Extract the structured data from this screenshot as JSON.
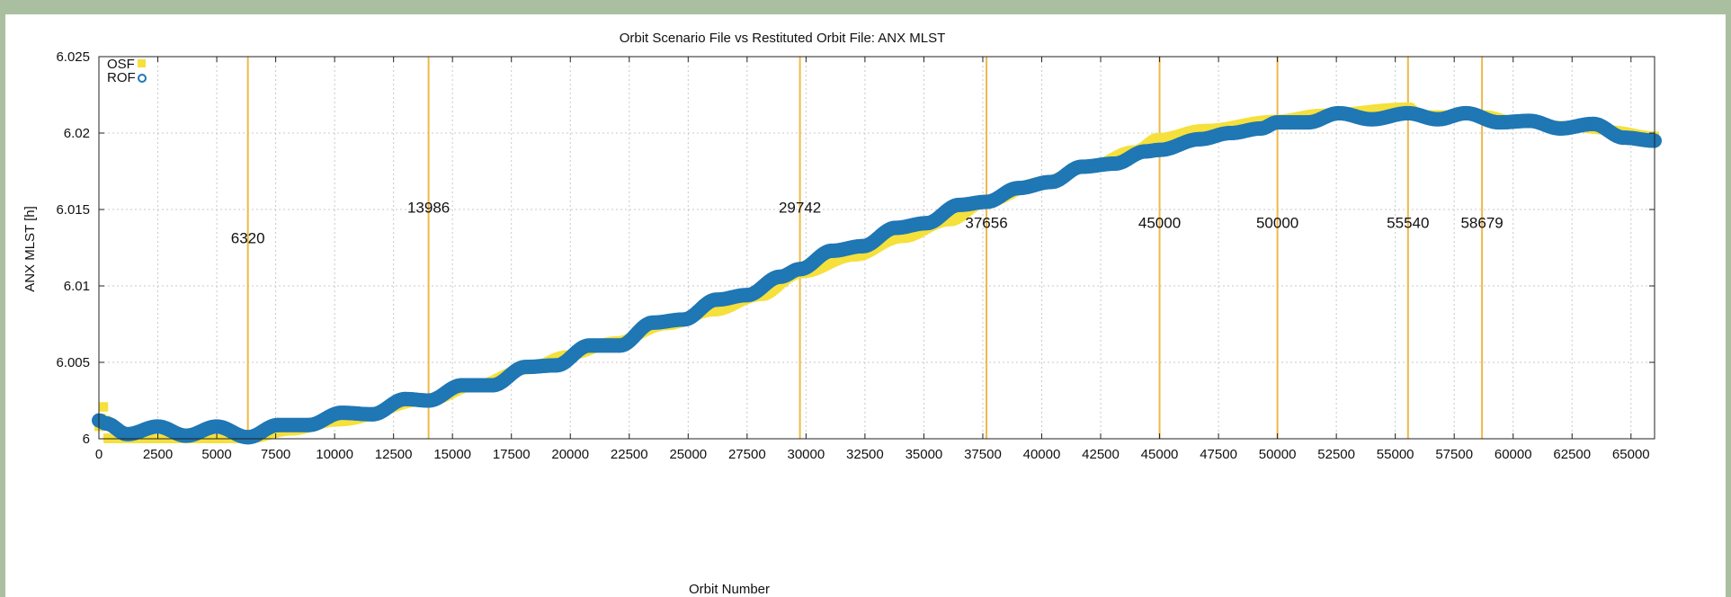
{
  "chart_data": {
    "type": "scatter",
    "title": "Orbit Scenario File vs Restituted Orbit File: ANX MLST",
    "xlabel": "Orbit Number",
    "ylabel": "ANX MLST [h]",
    "xlim": [
      0,
      66000
    ],
    "ylim": [
      6.0,
      6.025
    ],
    "xticks": [
      0,
      2500,
      5000,
      7500,
      10000,
      12500,
      15000,
      17500,
      20000,
      22500,
      25000,
      27500,
      30000,
      32500,
      35000,
      37500,
      40000,
      42500,
      45000,
      47500,
      50000,
      52500,
      55000,
      57500,
      60000,
      62500,
      65000
    ],
    "yticks": [
      6.0,
      6.005,
      6.01,
      6.015,
      6.02,
      6.025
    ],
    "ytick_labels": [
      "6",
      "6.005",
      "6.01",
      "6.015",
      "6.02",
      "6.025"
    ],
    "grid": true,
    "legend": "top-left",
    "series": [
      {
        "name": "OSF",
        "marker": "filled-square",
        "color": "#f5e03c",
        "x": [
          0,
          200,
          400,
          2000,
          4000,
          6320,
          8000,
          10000,
          13986,
          16000,
          18000,
          20000,
          22000,
          24000,
          26000,
          28000,
          29742,
          32000,
          34000,
          36000,
          37656,
          40000,
          42000,
          44000,
          45000,
          47000,
          50000,
          52000,
          55540,
          56000,
          58679,
          60000,
          62000,
          64000,
          66000
        ],
        "y": [
          6.0008,
          6.0021,
          6.0,
          6.0,
          6.0,
          6.0,
          6.0005,
          6.0011,
          6.0025,
          6.0035,
          6.0045,
          6.0055,
          6.0064,
          6.0074,
          6.0083,
          6.0093,
          6.0108,
          6.0119,
          6.0131,
          6.0142,
          6.0155,
          6.0168,
          6.0178,
          6.0189,
          6.0197,
          6.0203,
          6.0209,
          6.0213,
          6.0217,
          6.0212,
          6.0212,
          6.0208,
          6.0205,
          6.0202,
          6.0198
        ]
      },
      {
        "name": "ROF",
        "marker": "open-circle",
        "color": "#1f77b4",
        "x": [
          0,
          300,
          1200,
          2500,
          3700,
          5000,
          6320,
          7600,
          8900,
          10300,
          11600,
          13000,
          13986,
          15400,
          16700,
          18100,
          19400,
          20800,
          22100,
          23500,
          24800,
          26200,
          27500,
          28900,
          29742,
          31100,
          32400,
          33800,
          35100,
          36500,
          37656,
          39000,
          40400,
          41700,
          43100,
          44400,
          45000,
          46700,
          48000,
          49300,
          50000,
          51300,
          52600,
          54000,
          55540,
          56800,
          58000,
          59400,
          60700,
          62000,
          63400,
          64700,
          66000
        ],
        "y": [
          6.0012,
          6.001,
          6.0003,
          6.0008,
          6.0002,
          6.0008,
          6.0001,
          6.0009,
          6.0009,
          6.0017,
          6.0016,
          6.0026,
          6.0025,
          6.0035,
          6.0035,
          6.0047,
          6.0048,
          6.0061,
          6.0061,
          6.0076,
          6.0078,
          6.0091,
          6.0094,
          6.0106,
          6.0111,
          6.0123,
          6.0126,
          6.0138,
          6.0141,
          6.0153,
          6.0155,
          6.0164,
          6.0168,
          6.0178,
          6.018,
          6.0188,
          6.0189,
          6.0196,
          6.02,
          6.0203,
          6.0207,
          6.0207,
          6.0213,
          6.0209,
          6.0213,
          6.0209,
          6.0213,
          6.0207,
          6.0208,
          6.0203,
          6.0206,
          6.0197,
          6.0195
        ]
      }
    ],
    "vertical_markers": [
      {
        "x": 6320,
        "label": "6320",
        "label_y": 6.0128
      },
      {
        "x": 13986,
        "label": "13986",
        "label_y": 6.0148
      },
      {
        "x": 29742,
        "label": "29742",
        "label_y": 6.0148
      },
      {
        "x": 37656,
        "label": "37656",
        "label_y": 6.0138
      },
      {
        "x": 45000,
        "label": "45000",
        "label_y": 6.0138
      },
      {
        "x": 50000,
        "label": "50000",
        "label_y": 6.0138
      },
      {
        "x": 55540,
        "label": "55540",
        "label_y": 6.0138
      },
      {
        "x": 58679,
        "label": "58679",
        "label_y": 6.0138
      }
    ],
    "marker_color": "#f0b948"
  }
}
